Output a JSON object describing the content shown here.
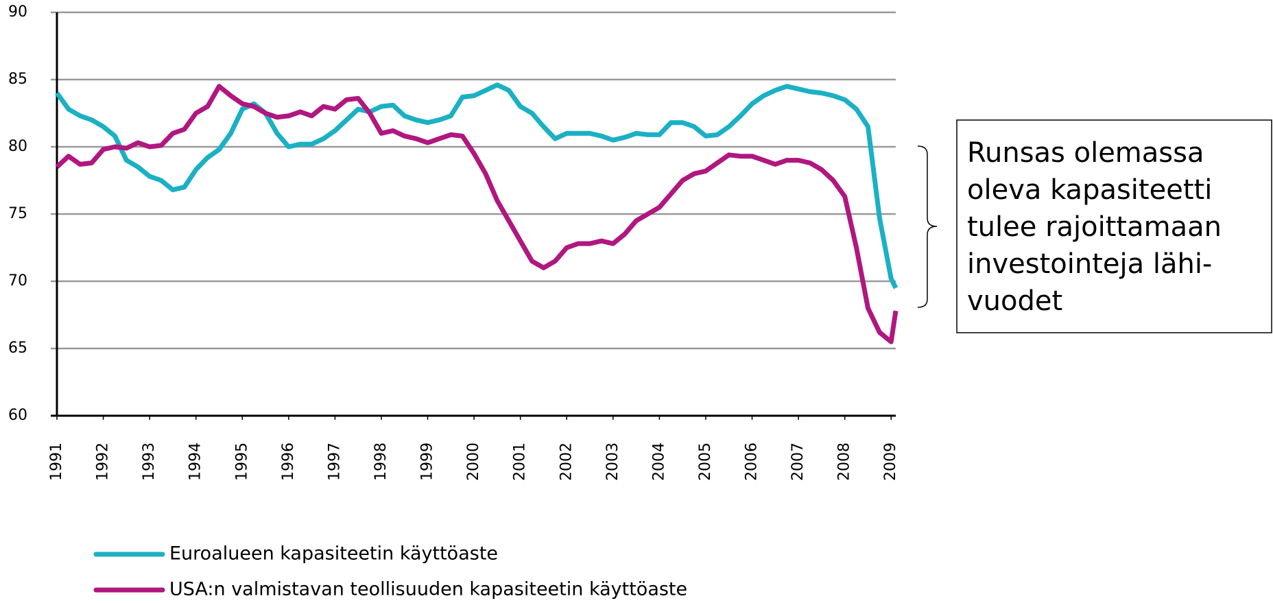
{
  "chart_data": {
    "type": "line",
    "x": [
      1991,
      1991.25,
      1991.5,
      1991.75,
      1992,
      1992.25,
      1992.5,
      1992.75,
      1993,
      1993.25,
      1993.5,
      1993.75,
      1994,
      1994.25,
      1994.5,
      1994.75,
      1995,
      1995.25,
      1995.5,
      1995.75,
      1996,
      1996.25,
      1996.5,
      1996.75,
      1997,
      1997.25,
      1997.5,
      1997.75,
      1998,
      1998.25,
      1998.5,
      1998.75,
      1999,
      1999.25,
      1999.5,
      1999.75,
      2000,
      2000.25,
      2000.5,
      2000.75,
      2001,
      2001.25,
      2001.5,
      2001.75,
      2002,
      2002.25,
      2002.5,
      2002.75,
      2003,
      2003.25,
      2003.5,
      2003.75,
      2004,
      2004.25,
      2004.5,
      2004.75,
      2005,
      2005.25,
      2005.5,
      2005.75,
      2006,
      2006.25,
      2006.5,
      2006.75,
      2007,
      2007.25,
      2007.5,
      2007.75,
      2008,
      2008.25,
      2008.5,
      2008.75,
      2009,
      2009.1
    ],
    "series": [
      {
        "name": "Euroalueen kapasiteetin käyttöaste",
        "color": "#1bb0c4",
        "values": [
          84,
          82.8,
          82.3,
          82,
          81.5,
          80.8,
          79,
          78.5,
          77.8,
          77.5,
          76.8,
          77,
          78.3,
          79.2,
          79.8,
          81,
          82.8,
          83.2,
          82.5,
          81,
          80,
          80.2,
          80.2,
          80.6,
          81.2,
          82,
          82.8,
          82.6,
          83,
          83.1,
          82.3,
          82,
          81.8,
          82,
          82.3,
          83.7,
          83.8,
          84.2,
          84.6,
          84.2,
          83,
          82.5,
          81.5,
          80.6,
          81,
          81,
          81,
          80.8,
          80.5,
          80.7,
          81,
          80.9,
          80.9,
          81.8,
          81.8,
          81.5,
          80.8,
          80.9,
          81.5,
          82.3,
          83.2,
          83.8,
          84.2,
          84.5,
          84.3,
          84.1,
          84,
          83.8,
          83.5,
          82.8,
          81.5,
          74.7,
          70.2,
          69.5
        ]
      },
      {
        "name": "USA:n valmistavan teollisuuden kapasiteetin käyttöaste",
        "color": "#b0177f",
        "values": [
          78.5,
          79.3,
          78.7,
          78.8,
          79.8,
          80,
          79.9,
          80.3,
          80,
          80.1,
          81,
          81.3,
          82.5,
          83,
          84.5,
          83.8,
          83.2,
          83,
          82.5,
          82.2,
          82.3,
          82.6,
          82.3,
          83,
          82.8,
          83.5,
          83.6,
          82.5,
          81,
          81.2,
          80.8,
          80.6,
          80.3,
          80.6,
          80.9,
          80.8,
          79.5,
          78,
          76,
          74.5,
          73,
          71.5,
          71,
          71.5,
          72.5,
          72.8,
          72.8,
          73,
          72.8,
          73.5,
          74.5,
          75,
          75.5,
          76.5,
          77.5,
          78,
          78.2,
          78.8,
          79.4,
          79.3,
          79.3,
          79,
          78.7,
          79,
          79,
          78.8,
          78.3,
          77.5,
          76.3,
          72.5,
          68,
          66.2,
          65.5,
          67.8
        ]
      }
    ],
    "xlim": [
      1991,
      2009.1
    ],
    "xticks": [
      1991,
      1992,
      1993,
      1994,
      1995,
      1996,
      1997,
      1998,
      1999,
      2000,
      2001,
      2002,
      2003,
      2004,
      2005,
      2006,
      2007,
      2008,
      2009
    ],
    "ylim": [
      60,
      90
    ],
    "yticks": [
      60,
      65,
      70,
      75,
      80,
      85,
      90
    ],
    "grid": true,
    "annotation": [
      "Runsas olemassa",
      "oleva kapasiteetti",
      "tulee rajoittamaan",
      "investointeja lähi-",
      "vuodet"
    ]
  }
}
